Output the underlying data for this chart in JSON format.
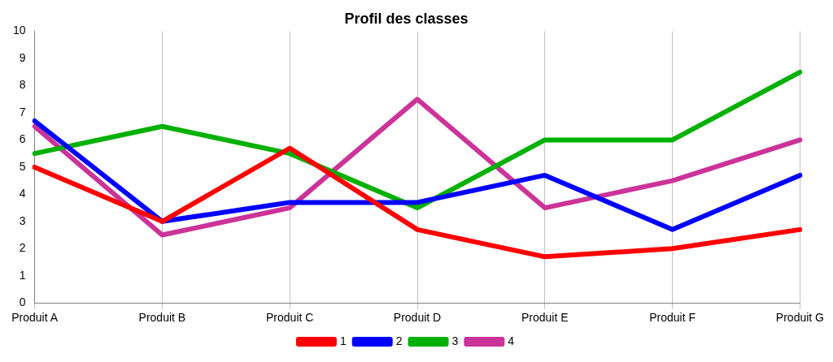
{
  "chart_data": {
    "type": "line",
    "title": "Profil des classes",
    "categories": [
      "Produit A",
      "Produit B",
      "Produit C",
      "Produit D",
      "Produit E",
      "Produit F",
      "Produit G"
    ],
    "series": [
      {
        "name": "1",
        "color": "#ff0000",
        "values": [
          5,
          3,
          5.7,
          2.7,
          1.7,
          2,
          2.7
        ]
      },
      {
        "name": "2",
        "color": "#0000ff",
        "values": [
          6.7,
          3,
          3.7,
          3.7,
          4.7,
          2.7,
          4.7
        ]
      },
      {
        "name": "3",
        "color": "#00b000",
        "values": [
          5.5,
          6.5,
          5.5,
          3.5,
          6,
          6,
          8.5
        ]
      },
      {
        "name": "4",
        "color": "#cc3399",
        "values": [
          6.5,
          2.5,
          3.5,
          7.5,
          3.5,
          4.5,
          6
        ]
      }
    ],
    "ylim": [
      0,
      10
    ],
    "yticks": [
      0,
      1,
      2,
      3,
      4,
      5,
      6,
      7,
      8,
      9,
      10
    ],
    "grid": "x",
    "legend": "bottom",
    "marker": "none",
    "line_style": "solid"
  }
}
